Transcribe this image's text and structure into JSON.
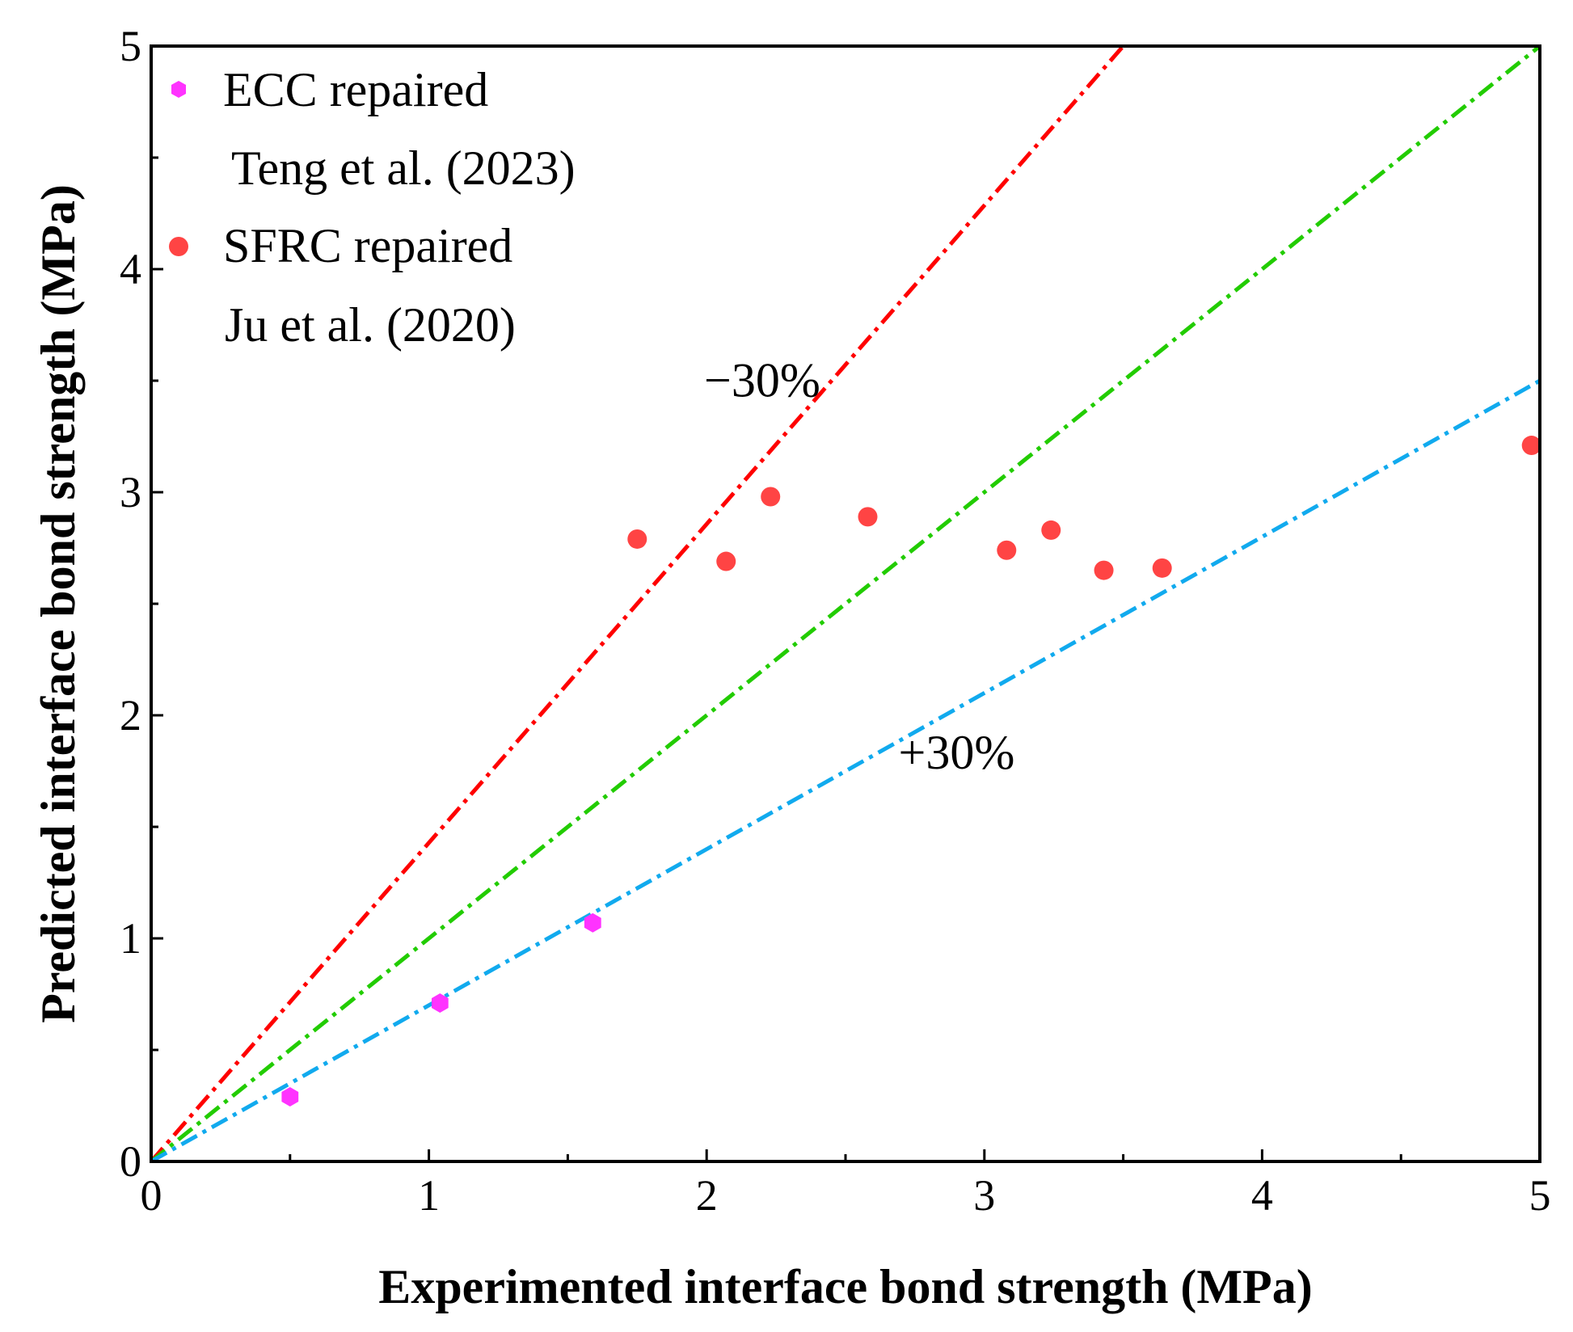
{
  "chart_data": {
    "type": "scatter",
    "xlabel": "Experimented interface bond strength (MPa)",
    "ylabel": "Predicted interface bond strength (MPa)",
    "xlim": [
      0,
      5
    ],
    "ylim": [
      0,
      5
    ],
    "x_ticks": [
      "0",
      "1",
      "2",
      "3",
      "4",
      "5"
    ],
    "y_ticks": [
      "0",
      "1",
      "2",
      "3",
      "4",
      "5"
    ],
    "grid": false,
    "legend_position": "top-left",
    "series": [
      {
        "name": "ECC repaired",
        "source": "Teng et al. (2023)",
        "marker": "hexagon",
        "color": "#ff33ff",
        "points": [
          [
            0.5,
            0.29
          ],
          [
            1.04,
            0.71
          ],
          [
            1.59,
            1.07
          ]
        ]
      },
      {
        "name": "SFRC repaired",
        "source": "Ju et al. (2020)",
        "marker": "circle",
        "color": "#ff4444",
        "points": [
          [
            1.75,
            2.79
          ],
          [
            2.07,
            2.69
          ],
          [
            2.23,
            2.98
          ],
          [
            2.58,
            2.89
          ],
          [
            3.08,
            2.74
          ],
          [
            3.24,
            2.83
          ],
          [
            3.43,
            2.65
          ],
          [
            3.64,
            2.66
          ],
          [
            4.97,
            3.21
          ]
        ]
      }
    ],
    "reference_lines": [
      {
        "name": "-30% line",
        "slope": 1.4286,
        "color": "#ff0000",
        "label": "−30%",
        "label_at": [
          2.2,
          3.43
        ]
      },
      {
        "name": "equality line",
        "slope": 1.0,
        "color": "#22cc00"
      },
      {
        "name": "+30% line",
        "slope": 0.7,
        "color": "#11aaee",
        "label": "+30%",
        "label_at": [
          2.9,
          1.76
        ]
      }
    ]
  }
}
